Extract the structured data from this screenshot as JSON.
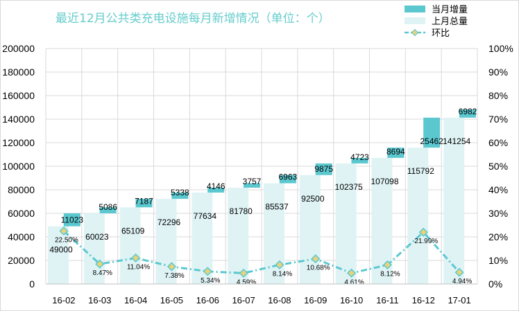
{
  "chart_data": {
    "type": "bar",
    "title": "最近12月公共类充电设施每月新增情况（单位：个）",
    "categories": [
      "16-02",
      "16-03",
      "16-04",
      "16-05",
      "16-06",
      "16-07",
      "16-08",
      "16-09",
      "16-10",
      "16-11",
      "16-12",
      "17-01"
    ],
    "series": [
      {
        "name": "当月增量",
        "values": [
          11023,
          5086,
          7187,
          5338,
          4146,
          3757,
          6963,
          9875,
          4723,
          8694,
          25462,
          6982
        ],
        "color": "#5bc8d0"
      },
      {
        "name": "上月总量",
        "values": [
          49000,
          60023,
          65109,
          72296,
          77634,
          81780,
          85537,
          92500,
          102375,
          107098,
          115792,
          141254
        ],
        "color": "#dff3f5"
      },
      {
        "name": "环比",
        "values": [
          22.5,
          8.47,
          11.04,
          7.38,
          5.34,
          4.59,
          8.14,
          10.68,
          4.61,
          8.12,
          21.99,
          4.94
        ],
        "labels": [
          "22.50%",
          "8.47%",
          "11.04%",
          "7.38%",
          "5.34%",
          "4.59%",
          "8.14%",
          "10.68%",
          "4.61%",
          "8.12%",
          "21.99%",
          "4.94%"
        ],
        "color": "#5bc8d0"
      }
    ],
    "y_left": {
      "min": 0,
      "max": 200000,
      "ticks": [
        "0",
        "20000",
        "40000",
        "60000",
        "80000",
        "100000",
        "120000",
        "140000",
        "160000",
        "180000",
        "200000"
      ]
    },
    "y_right": {
      "min": 0,
      "max": 100,
      "ticks": [
        "0%",
        "10%",
        "20%",
        "30%",
        "40%",
        "50%",
        "60%",
        "70%",
        "80%",
        "90%",
        "100%"
      ]
    },
    "legend_position": "top-right",
    "grid": true
  }
}
